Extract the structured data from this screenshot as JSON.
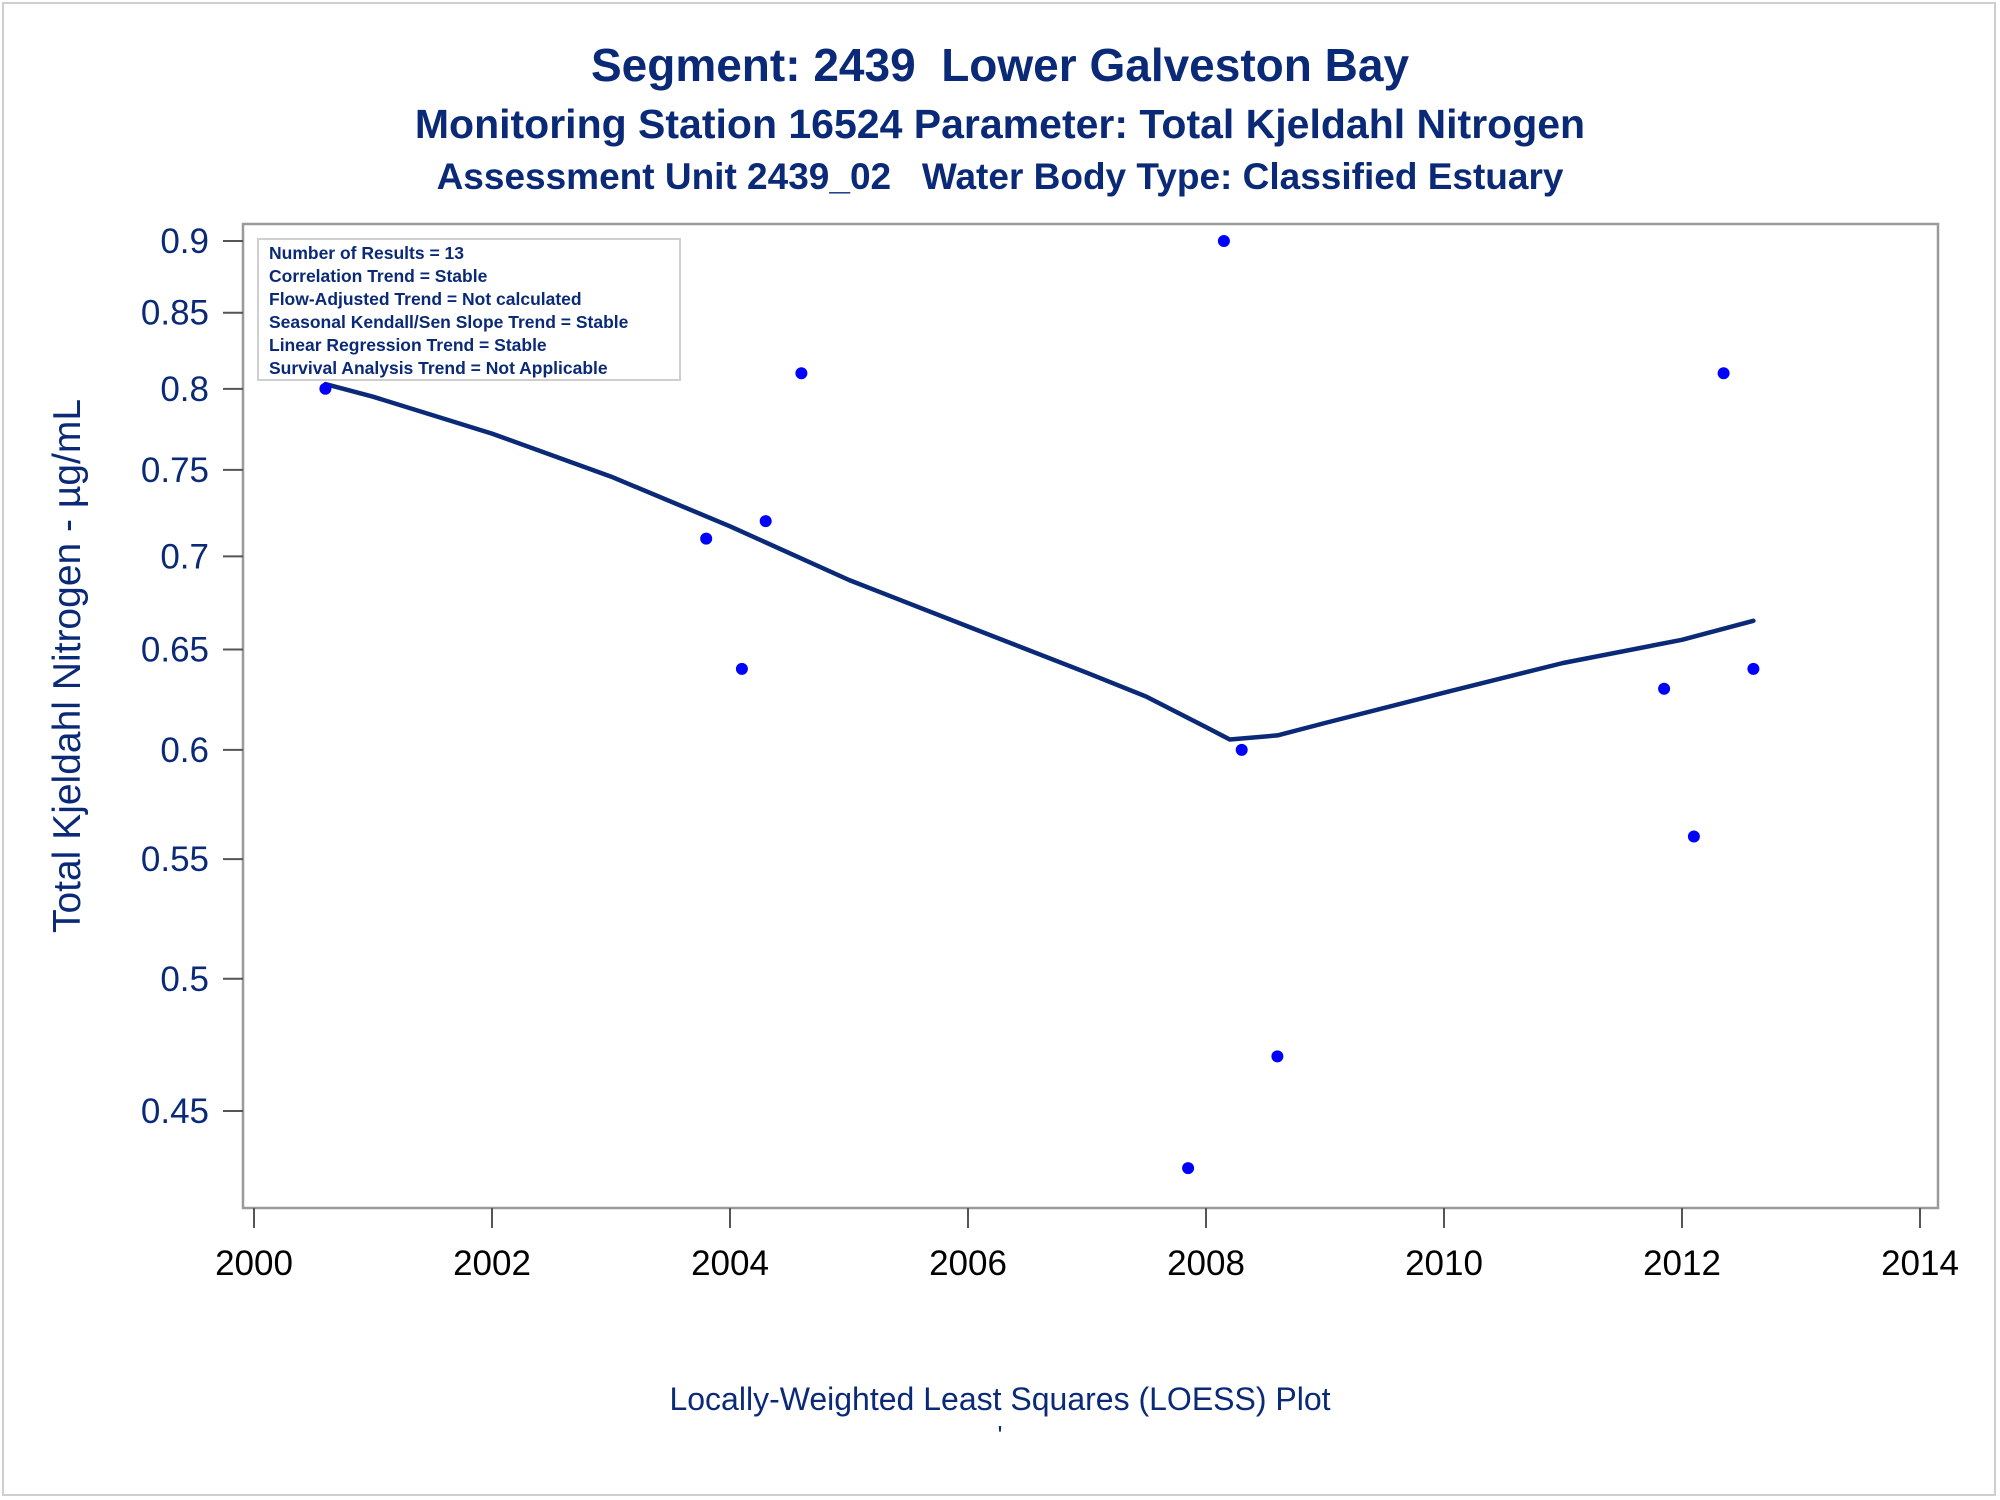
{
  "titles": {
    "line1": "Segment: 2439  Lower Galveston Bay",
    "line2": "Monitoring Station 16524 Parameter: Total Kjeldahl Nitrogen",
    "line3": "Assessment Unit 2439_02   Water Body Type: Classified Estuary"
  },
  "footnote": {
    "line1": "Locally-Weighted Least Squares (LOESS) Plot",
    "line2": "'"
  },
  "colors": {
    "text": "#0a2a78",
    "points": "#0000ff",
    "loess": "#0a2a78",
    "frame": "#9a9a9a"
  },
  "chart_data": {
    "type": "scatter",
    "xlabel": "",
    "ylabel": "Total Kjeldahl Nitrogen -  µg/mL",
    "y_scale": "log",
    "xlim": [
      2000,
      2014
    ],
    "ylim": [
      0.425,
      0.9
    ],
    "x_ticks": [
      "2000",
      "2002",
      "2004",
      "2006",
      "2008",
      "2010",
      "2012",
      "2014"
    ],
    "y_ticks": [
      "0.45",
      "0.5",
      "0.55",
      "0.6",
      "0.65",
      "0.7",
      "0.75",
      "0.8",
      "0.85",
      "0.9"
    ],
    "grid": false,
    "stats_box": {
      "placement": "top-left",
      "lines": [
        "Number of Results = 13",
        "Correlation Trend = Stable",
        "Flow-Adjusted Trend = Not calculated",
        "Seasonal Kendall/Sen Slope Trend = Stable",
        "Linear Regression Trend = Stable",
        "Survival Analysis Trend = Not Applicable"
      ]
    },
    "points": [
      {
        "x": 2000.6,
        "y": 0.8
      },
      {
        "x": 2003.8,
        "y": 0.71
      },
      {
        "x": 2004.1,
        "y": 0.64
      },
      {
        "x": 2004.3,
        "y": 0.72
      },
      {
        "x": 2004.6,
        "y": 0.81
      },
      {
        "x": 2007.85,
        "y": 0.43
      },
      {
        "x": 2008.15,
        "y": 0.9
      },
      {
        "x": 2008.3,
        "y": 0.6
      },
      {
        "x": 2008.6,
        "y": 0.47
      },
      {
        "x": 2011.85,
        "y": 0.63
      },
      {
        "x": 2012.1,
        "y": 0.56
      },
      {
        "x": 2012.35,
        "y": 0.81
      },
      {
        "x": 2012.6,
        "y": 0.64
      }
    ],
    "loess": [
      {
        "x": 2000.6,
        "y": 0.803
      },
      {
        "x": 2001.0,
        "y": 0.795
      },
      {
        "x": 2002.0,
        "y": 0.772
      },
      {
        "x": 2003.0,
        "y": 0.746
      },
      {
        "x": 2004.0,
        "y": 0.717
      },
      {
        "x": 2005.0,
        "y": 0.687
      },
      {
        "x": 2006.0,
        "y": 0.662
      },
      {
        "x": 2007.0,
        "y": 0.638
      },
      {
        "x": 2007.5,
        "y": 0.626
      },
      {
        "x": 2008.0,
        "y": 0.611
      },
      {
        "x": 2008.2,
        "y": 0.605
      },
      {
        "x": 2008.6,
        "y": 0.607
      },
      {
        "x": 2009.0,
        "y": 0.613
      },
      {
        "x": 2010.0,
        "y": 0.628
      },
      {
        "x": 2011.0,
        "y": 0.643
      },
      {
        "x": 2012.0,
        "y": 0.655
      },
      {
        "x": 2012.6,
        "y": 0.665
      }
    ]
  }
}
